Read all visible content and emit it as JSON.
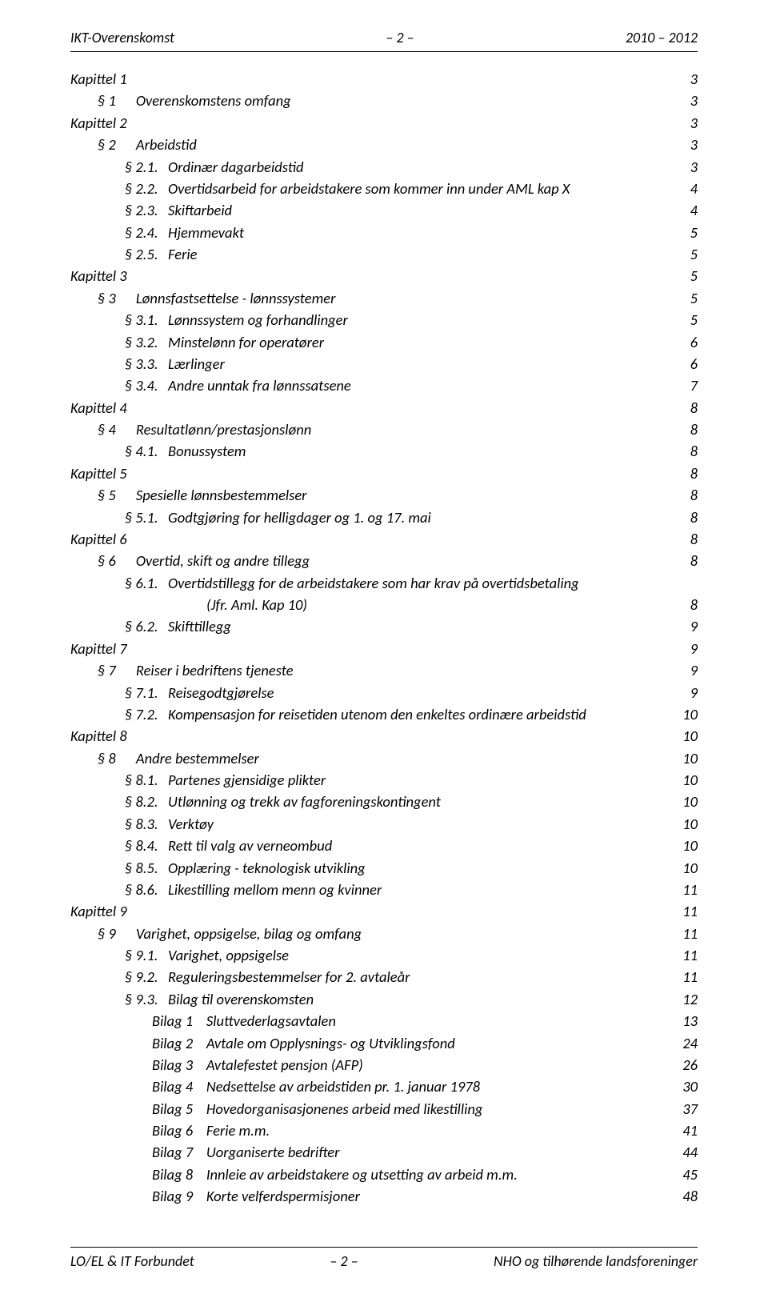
{
  "header": {
    "left": "IKT-Overenskomst",
    "center": "– 2 –",
    "right": "2010 – 2012"
  },
  "footer": {
    "left": "LO/EL & IT Forbundet",
    "center": "– 2 –",
    "right": "NHO og tilhørende landsforeninger"
  },
  "toc": [
    {
      "indent": 0,
      "text": "Kapittel 1",
      "page": "3"
    },
    {
      "indent": 1,
      "text": "§ 1      Overenskomstens omfang",
      "page": "3"
    },
    {
      "indent": 0,
      "text": "Kapittel 2",
      "page": "3"
    },
    {
      "indent": 1,
      "text": "§ 2      Arbeidstid",
      "page": "3"
    },
    {
      "indent": 2,
      "text": "§ 2.1.   Ordinær dagarbeidstid",
      "page": "3"
    },
    {
      "indent": 2,
      "text": "§ 2.2.   Overtidsarbeid for arbeidstakere som kommer inn under AML kap X",
      "page": "4"
    },
    {
      "indent": 2,
      "text": "§ 2.3.   Skiftarbeid",
      "page": "4"
    },
    {
      "indent": 2,
      "text": "§ 2.4.   Hjemmevakt",
      "page": "5"
    },
    {
      "indent": 2,
      "text": "§ 2.5.   Ferie",
      "page": "5"
    },
    {
      "indent": 0,
      "text": "Kapittel 3",
      "page": "5"
    },
    {
      "indent": 1,
      "text": "§ 3      Lønnsfastsettelse - lønnssystemer",
      "page": "5"
    },
    {
      "indent": 2,
      "text": "§ 3.1.   Lønnssystem og forhandlinger",
      "page": "5"
    },
    {
      "indent": 2,
      "text": "§ 3.2.   Minstelønn for operatører",
      "page": "6"
    },
    {
      "indent": 2,
      "text": "§ 3.3.   Lærlinger",
      "page": "6"
    },
    {
      "indent": 2,
      "text": "§ 3.4.   Andre unntak fra lønnssatsene",
      "page": "7"
    },
    {
      "indent": 0,
      "text": "Kapittel 4",
      "page": "8"
    },
    {
      "indent": 1,
      "text": "§ 4      Resultatlønn/prestasjonslønn",
      "page": "8"
    },
    {
      "indent": 2,
      "text": "§ 4.1.   Bonussystem",
      "page": "8"
    },
    {
      "indent": 0,
      "text": "Kapittel 5",
      "page": "8"
    },
    {
      "indent": 1,
      "text": "§ 5      Spesielle lønnsbestemmelser",
      "page": "8"
    },
    {
      "indent": 2,
      "text": "§ 5.1.   Godtgjøring for helligdager og 1. og 17. mai",
      "page": "8"
    },
    {
      "indent": 0,
      "text": "Kapittel 6",
      "page": "8"
    },
    {
      "indent": 1,
      "text": "§ 6      Overtid, skift og andre tillegg",
      "page": "8"
    },
    {
      "indent": 2,
      "text": "§ 6.1.   Overtidstillegg for de arbeidstakere som har krav på overtidsbetaling",
      "page": ""
    },
    {
      "indent": 4,
      "text": "(Jfr. Aml. Kap 10)",
      "page": "8"
    },
    {
      "indent": 2,
      "text": "§ 6.2.   Skifttillegg",
      "page": "9"
    },
    {
      "indent": 0,
      "text": "Kapittel 7",
      "page": "9"
    },
    {
      "indent": 1,
      "text": "§ 7      Reiser i bedriftens tjeneste",
      "page": "9"
    },
    {
      "indent": 2,
      "text": "§ 7.1.   Reisegodtgjørelse",
      "page": "9"
    },
    {
      "indent": 2,
      "text": "§ 7.2.   Kompensasjon for reisetiden utenom den enkeltes ordinære arbeidstid",
      "page": "10"
    },
    {
      "indent": 0,
      "text": "Kapittel 8",
      "page": "10"
    },
    {
      "indent": 1,
      "text": "§ 8      Andre bestemmelser",
      "page": "10"
    },
    {
      "indent": 2,
      "text": "§ 8.1.   Partenes gjensidige plikter",
      "page": "10"
    },
    {
      "indent": 2,
      "text": "§ 8.2.   Utlønning og trekk av fagforeningskontingent",
      "page": "10"
    },
    {
      "indent": 2,
      "text": "§ 8.3.   Verktøy",
      "page": "10"
    },
    {
      "indent": 2,
      "text": "§ 8.4.   Rett til valg av verneombud",
      "page": "10"
    },
    {
      "indent": 2,
      "text": "§ 8.5.   Opplæring - teknologisk utvikling",
      "page": "10"
    },
    {
      "indent": 2,
      "text": "§ 8.6.   Likestilling mellom menn og kvinner",
      "page": "11"
    },
    {
      "indent": 0,
      "text": "Kapittel 9",
      "page": "11"
    },
    {
      "indent": 1,
      "text": "§ 9      Varighet, oppsigelse, bilag og omfang",
      "page": "11"
    },
    {
      "indent": 2,
      "text": "§ 9.1.   Varighet, oppsigelse",
      "page": "11"
    },
    {
      "indent": 2,
      "text": "§ 9.2.   Reguleringsbestemmelser for 2. avtaleår",
      "page": "11"
    },
    {
      "indent": 2,
      "text": "§ 9.3.   Bilag til overenskomsten",
      "page": "12"
    },
    {
      "indent": 3,
      "text": "Bilag 1    Sluttvederlagsavtalen",
      "page": "13"
    },
    {
      "indent": 3,
      "text": "Bilag 2    Avtale om Opplysnings- og Utviklingsfond",
      "page": "24"
    },
    {
      "indent": 3,
      "text": "Bilag 3    Avtalefestet pensjon (AFP)",
      "page": "26"
    },
    {
      "indent": 3,
      "text": "Bilag 4    Nedsettelse av arbeidstiden pr. 1. januar 1978",
      "page": "30"
    },
    {
      "indent": 3,
      "text": "Bilag 5    Hovedorganisasjonenes arbeid med likestilling",
      "page": "37"
    },
    {
      "indent": 3,
      "text": "Bilag 6    Ferie m.m.",
      "page": "41"
    },
    {
      "indent": 3,
      "text": "Bilag 7    Uorganiserte bedrifter",
      "page": "44"
    },
    {
      "indent": 3,
      "text": "Bilag 8    Innleie av arbeidstakere og utsetting av arbeid m.m.",
      "page": "45"
    },
    {
      "indent": 3,
      "text": "Bilag 9    Korte velferdspermisjoner",
      "page": "48"
    }
  ]
}
